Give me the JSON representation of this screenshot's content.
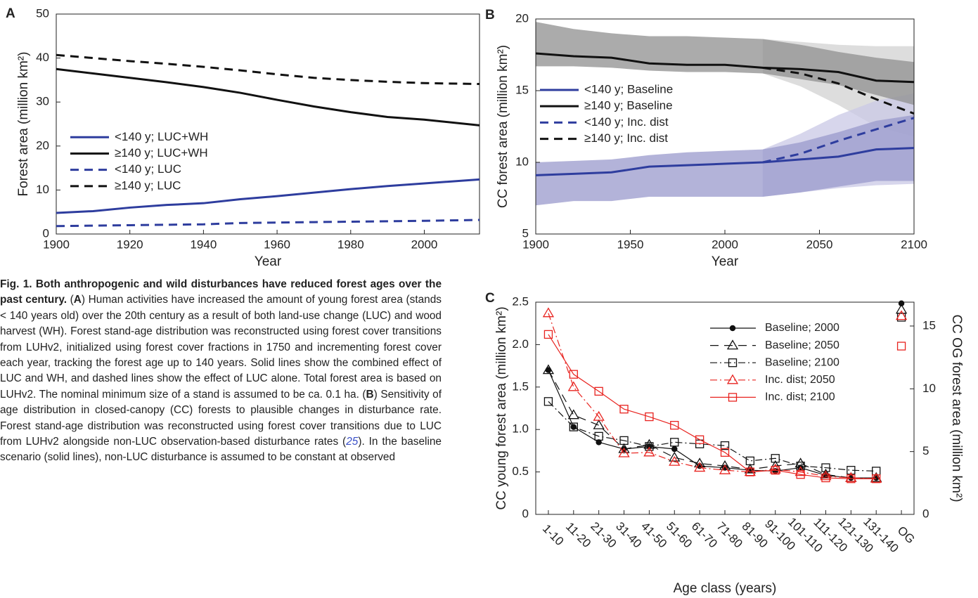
{
  "chart_data": [
    {
      "type": "line",
      "panel": "A",
      "xlabel": "Year",
      "ylabel": "Forest area (million km²)",
      "x": [
        1900,
        1910,
        1920,
        1930,
        1940,
        1950,
        1960,
        1970,
        1980,
        1990,
        2000,
        2015
      ],
      "xlim": [
        1900,
        2015
      ],
      "xticks": [
        1900,
        1920,
        1940,
        1960,
        1980,
        2000
      ],
      "ylim": [
        0,
        50
      ],
      "yticks": [
        0,
        10,
        20,
        30,
        40,
        50
      ],
      "grid": false,
      "legend": "center left",
      "series": [
        {
          "name": "<140 y; LUC+WH",
          "color": "#2e3d9e",
          "dash": "solid",
          "values": [
            4.8,
            5.2,
            6.0,
            6.6,
            7.0,
            7.9,
            8.6,
            9.4,
            10.2,
            10.9,
            11.5,
            12.4
          ]
        },
        {
          "name": "≥140 y; LUC+WH",
          "color": "#111111",
          "dash": "solid",
          "values": [
            37.5,
            36.5,
            35.5,
            34.5,
            33.4,
            32.1,
            30.5,
            29.0,
            27.7,
            26.6,
            26.0,
            24.7
          ]
        },
        {
          "name": "<140 y; LUC",
          "color": "#2e3d9e",
          "dash": "dashed",
          "values": [
            1.8,
            1.9,
            2.0,
            2.1,
            2.2,
            2.5,
            2.6,
            2.7,
            2.8,
            2.9,
            3.0,
            3.2
          ]
        },
        {
          "name": "≥140 y; LUC",
          "color": "#111111",
          "dash": "dashed",
          "values": [
            40.7,
            40.0,
            39.3,
            38.7,
            38.0,
            37.2,
            36.3,
            35.5,
            35.0,
            34.6,
            34.3,
            34.1
          ]
        }
      ]
    },
    {
      "type": "line",
      "panel": "B",
      "xlabel": "Year",
      "ylabel": "CC forest area (million km²)",
      "xlim": [
        1900,
        2100
      ],
      "xticks": [
        1900,
        1950,
        2000,
        2050,
        2100
      ],
      "ylim": [
        5,
        20
      ],
      "yticks": [
        5,
        10,
        15,
        20
      ],
      "grid": false,
      "legend": "upper left",
      "series": [
        {
          "name": "<140 y; Baseline",
          "color": "#2e3d9e",
          "dash": "solid",
          "band_color": "#9a99cc",
          "x": [
            1900,
            1920,
            1940,
            1960,
            1980,
            2000,
            2020,
            2040,
            2060,
            2080,
            2100
          ],
          "values": [
            9.1,
            9.2,
            9.3,
            9.7,
            9.8,
            9.9,
            10.0,
            10.2,
            10.4,
            10.9,
            11.0
          ],
          "lower": [
            7.0,
            7.3,
            7.3,
            7.6,
            7.6,
            7.6,
            7.6,
            7.9,
            8.3,
            8.7,
            8.7
          ],
          "upper": [
            10.0,
            10.1,
            10.2,
            10.5,
            10.7,
            10.8,
            10.9,
            11.4,
            12.1,
            12.9,
            13.3
          ]
        },
        {
          "name": "≥140 y; Baseline",
          "color": "#111111",
          "dash": "solid",
          "band_color": "#8f8f8f",
          "x": [
            1900,
            1920,
            1940,
            1960,
            1980,
            2000,
            2020,
            2040,
            2060,
            2080,
            2100
          ],
          "values": [
            17.6,
            17.4,
            17.3,
            16.9,
            16.8,
            16.8,
            16.6,
            16.5,
            16.3,
            15.7,
            15.6
          ],
          "lower": [
            16.7,
            16.7,
            16.6,
            16.4,
            16.3,
            16.3,
            16.2,
            15.8,
            15.4,
            14.7,
            14.0
          ],
          "upper": [
            19.8,
            19.3,
            19.0,
            18.8,
            18.8,
            18.7,
            18.6,
            18.2,
            17.7,
            17.3,
            17.0
          ]
        },
        {
          "name": "<140 y; Inc. dist",
          "color": "#2e3d9e",
          "dash": "dashed",
          "band_color": "#c9c8e6",
          "x": [
            2020,
            2040,
            2060,
            2080,
            2100
          ],
          "values": [
            10.0,
            10.6,
            11.5,
            12.3,
            13.1
          ],
          "lower": [
            7.6,
            7.9,
            8.2,
            8.4,
            8.5
          ],
          "upper": [
            10.9,
            12.0,
            13.3,
            14.3,
            14.8
          ]
        },
        {
          "name": "≥140 y; Inc. dist",
          "color": "#111111",
          "dash": "dashed",
          "band_color": "#d2d2d2",
          "x": [
            2020,
            2040,
            2060,
            2080,
            2100
          ],
          "values": [
            16.6,
            16.2,
            15.5,
            14.4,
            13.4
          ],
          "lower": [
            16.2,
            15.3,
            14.0,
            12.5,
            11.8
          ],
          "upper": [
            18.6,
            18.4,
            18.2,
            18.1,
            18.1
          ]
        }
      ]
    },
    {
      "type": "line",
      "panel": "C",
      "xlabel": "Age class (years)",
      "ylabel": "CC young forest area (million km²)",
      "y2label": "CC OG forest area (million km²)",
      "categories": [
        "1-10",
        "11-20",
        "21-30",
        "31-40",
        "41-50",
        "51-60",
        "61-70",
        "71-80",
        "81-90",
        "91-100",
        "101-110",
        "111-120",
        "121-130",
        "131-140",
        "OG"
      ],
      "ylim": [
        0,
        2.5
      ],
      "yticks": [
        0,
        0.5,
        {
          "value": 1,
          "label": "1.0"
        },
        1.5,
        {
          "value": 2,
          "label": "2.0"
        },
        2.5
      ],
      "y2lim": [
        0,
        16.9
      ],
      "y2ticks": [
        0,
        5,
        10,
        15
      ],
      "grid": false,
      "legend": "upper right",
      "series": [
        {
          "name": "Baseline; 2000",
          "color": "#111111",
          "dash": "solid",
          "marker": "dot",
          "values": [
            1.7,
            1.03,
            0.85,
            0.77,
            0.8,
            0.77,
            0.57,
            0.55,
            0.52,
            0.51,
            0.55,
            0.46,
            0.43,
            0.43,
            null
          ]
        },
        {
          "name": "Baseline; 2050",
          "color": "#111111",
          "dash": "dashed",
          "marker": "triangle",
          "values": [
            1.7,
            1.17,
            1.05,
            0.77,
            0.82,
            0.67,
            0.6,
            0.57,
            0.53,
            0.57,
            0.6,
            0.47,
            0.43,
            0.43,
            null
          ]
        },
        {
          "name": "Baseline; 2100",
          "color": "#111111",
          "dash": "dashdot",
          "marker": "square",
          "values": [
            1.33,
            1.03,
            0.92,
            0.87,
            0.8,
            0.85,
            0.83,
            0.81,
            0.63,
            0.66,
            0.57,
            0.55,
            0.52,
            0.51,
            null
          ]
        },
        {
          "name": "Inc. dist; 2050",
          "color": "#e8231f",
          "dash": "dashdot",
          "marker": "triangle",
          "values": [
            2.37,
            1.5,
            1.15,
            0.72,
            0.73,
            0.62,
            0.55,
            0.52,
            0.5,
            0.53,
            0.5,
            0.45,
            0.43,
            0.42,
            null
          ]
        },
        {
          "name": "Inc. dist; 2100",
          "color": "#e8231f",
          "dash": "solid",
          "marker": "square",
          "values": [
            2.12,
            1.65,
            1.45,
            1.24,
            1.15,
            1.05,
            0.88,
            0.73,
            0.5,
            0.52,
            0.47,
            0.43,
            0.42,
            0.42,
            null
          ]
        },
        {
          "axis": "y2",
          "color": "#111111",
          "marker": "dot",
          "values": [
            null,
            null,
            null,
            null,
            null,
            null,
            null,
            null,
            null,
            null,
            null,
            null,
            null,
            null,
            16.8
          ]
        },
        {
          "axis": "y2",
          "color": "#111111",
          "marker": "triangle",
          "values": [
            null,
            null,
            null,
            null,
            null,
            null,
            null,
            null,
            null,
            null,
            null,
            null,
            null,
            null,
            16.3
          ]
        },
        {
          "axis": "y2",
          "color": "#111111",
          "marker": "square",
          "values": [
            null,
            null,
            null,
            null,
            null,
            null,
            null,
            null,
            null,
            null,
            null,
            null,
            null,
            null,
            15.7
          ]
        },
        {
          "axis": "y2",
          "color": "#e8231f",
          "marker": "triangle",
          "values": [
            null,
            null,
            null,
            null,
            null,
            null,
            null,
            null,
            null,
            null,
            null,
            null,
            null,
            null,
            15.8
          ]
        },
        {
          "axis": "y2",
          "color": "#e8231f",
          "marker": "square",
          "values": [
            null,
            null,
            null,
            null,
            null,
            null,
            null,
            null,
            null,
            null,
            null,
            null,
            null,
            null,
            13.4
          ]
        }
      ]
    }
  ],
  "caption": {
    "runs": [
      {
        "text": "Fig. 1. Both anthropogenic and wild disturbances have reduced forest ages over the past century.",
        "bold": true
      },
      {
        "text": " ("
      },
      {
        "text": "A",
        "bold": true
      },
      {
        "text": ") Human activities have increased the amount of young forest area (stands < 140 years old) over the 20th century as a result of both land-use change (LUC) and wood harvest (WH). Forest stand-age distribution was reconstructed using forest cover transitions from LUHv2, initialized using forest cover fractions in 1750 and incrementing forest cover each year, tracking the forest age up to 140 years. Solid lines show the combined effect of LUC and WH, and dashed lines show the effect of LUC alone. Total forest area is based on LUHv2. The nominal minimum size of a stand is assumed to be ca. 0.1 ha. ("
      },
      {
        "text": "B",
        "bold": true
      },
      {
        "text": ") Sensitivity of age distribution in closed-canopy (CC) forests to plausible changes in disturbance rate. Forest stand-age distribution was reconstructed using forest cover transitions due to LUC from LUHv2 alongside non-LUC observation-based disturbance rates ("
      },
      {
        "text": "25",
        "italic": true,
        "color": "#3a50c8"
      },
      {
        "text": "). In the baseline scenario (solid lines), non-LUC disturbance is assumed to be constant at observed"
      }
    ]
  }
}
